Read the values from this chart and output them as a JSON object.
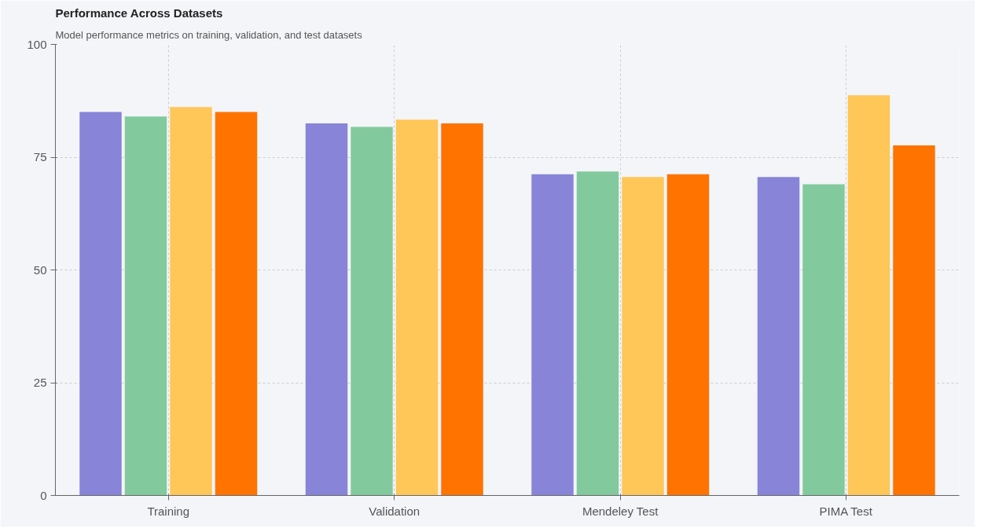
{
  "chart_data": {
    "type": "bar",
    "title": "Performance Across Datasets",
    "subtitle": "Model performance metrics on training, validation, and test datasets",
    "categories": [
      "Training",
      "Validation",
      "Mendeley Test",
      "PIMA Test"
    ],
    "series": [
      {
        "color": "#8884d8",
        "values": [
          85,
          82.5,
          71.2,
          70.6
        ]
      },
      {
        "color": "#82ca9d",
        "values": [
          84,
          81.7,
          71.8,
          69
        ]
      },
      {
        "color": "#ffc658",
        "values": [
          86.1,
          83.3,
          70.6,
          88.7
        ]
      },
      {
        "color": "#ff7300",
        "values": [
          85,
          82.5,
          71.2,
          77.6
        ]
      }
    ],
    "ylim": [
      0,
      100
    ],
    "yticks": [
      0,
      25,
      50,
      75,
      100
    ],
    "grid": true
  }
}
